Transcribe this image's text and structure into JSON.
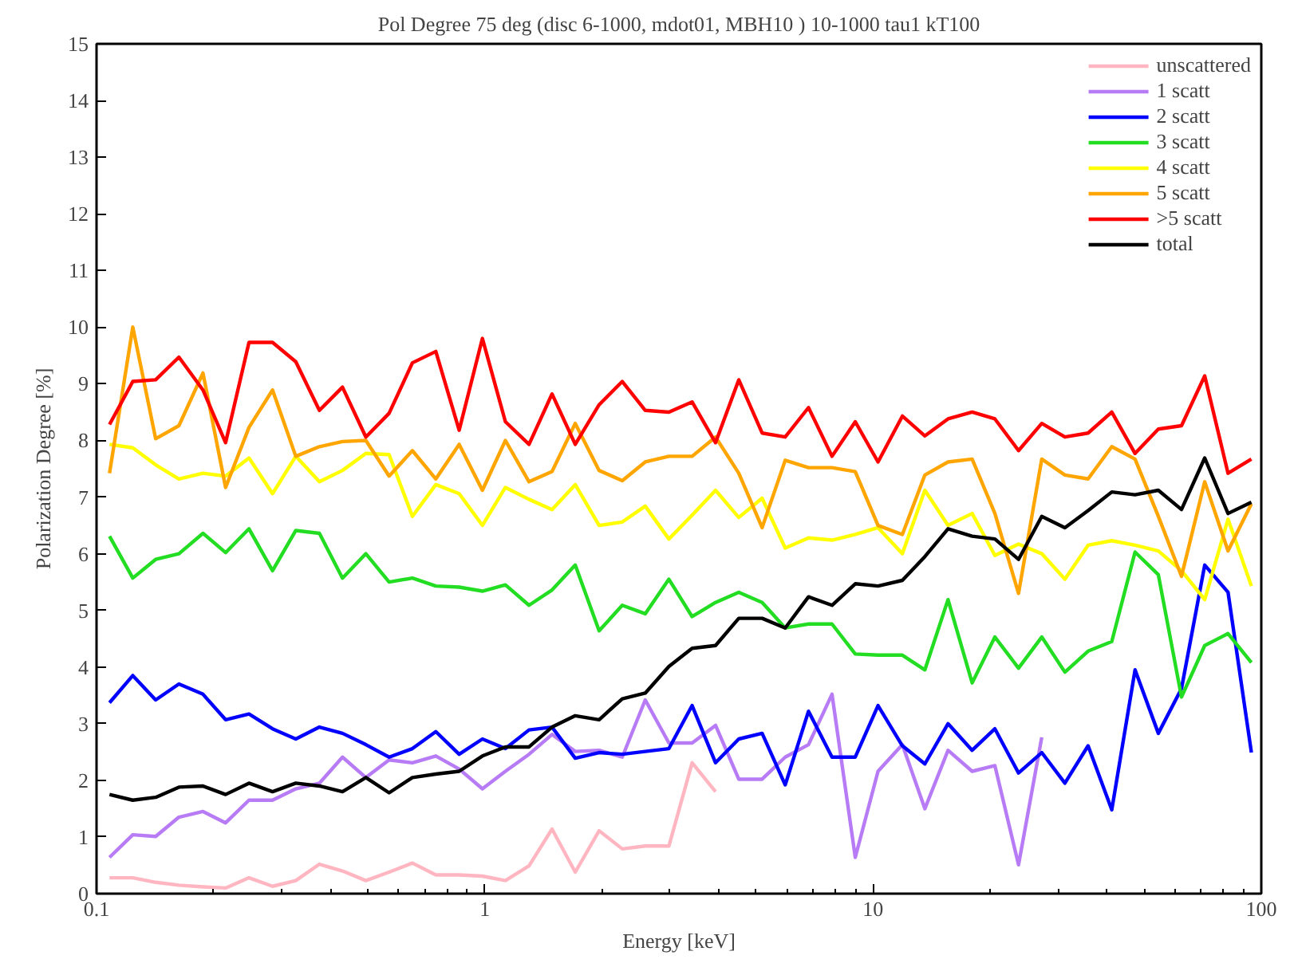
{
  "chart_data": {
    "type": "line",
    "title": "Pol Degree 75 deg (disc 6-1000, mdot01, MBH10 ) 10-1000 tau1 kT100",
    "xlabel": "Energy [keV]",
    "ylabel": "Polarization Degree [%]",
    "log": "x",
    "grid": false,
    "legend": "top right",
    "marker": "none",
    "line_style": "solid",
    "xlim": [
      0.1,
      100
    ],
    "xticks": [
      0.1,
      1,
      10,
      100
    ],
    "ylim": [
      0,
      15
    ],
    "yticks": [
      0,
      1,
      2,
      3,
      4,
      5,
      6,
      7,
      8,
      9,
      10,
      11,
      12,
      13,
      14,
      15
    ],
    "x": [
      0.108,
      0.124,
      0.142,
      0.163,
      0.188,
      0.215,
      0.247,
      0.284,
      0.326,
      0.375,
      0.43,
      0.494,
      0.567,
      0.651,
      0.748,
      0.859,
      0.986,
      1.13,
      1.3,
      1.49,
      1.71,
      1.97,
      2.26,
      2.59,
      2.98,
      3.42,
      3.93,
      4.51,
      5.18,
      5.94,
      6.82,
      7.84,
      9.0,
      10.3,
      11.9,
      13.6,
      15.6,
      18.0,
      20.6,
      23.7,
      27.2,
      31.2,
      35.8,
      41.2,
      47.3,
      54.3,
      62.3,
      71.5,
      82.1,
      94.3
    ],
    "series": [
      {
        "name": "unscattered",
        "color": "#ffb6c1",
        "values": [
          0.28,
          0.28,
          0.2,
          0.15,
          0.12,
          0.1,
          0.28,
          0.13,
          0.23,
          0.52,
          0.4,
          0.23,
          0.38,
          0.54,
          0.33,
          0.33,
          0.31,
          0.23,
          0.49,
          1.14,
          0.38,
          1.11,
          0.79,
          0.84,
          0.84,
          2.31,
          1.8,
          null,
          null,
          null,
          null,
          null,
          null,
          null,
          null,
          null,
          null,
          null,
          null,
          null,
          null,
          null,
          null,
          null,
          null,
          null,
          null,
          null,
          null,
          null
        ]
      },
      {
        "name": "1 scatt",
        "color": "#b77cf5",
        "values": [
          0.64,
          1.04,
          1.01,
          1.35,
          1.45,
          1.25,
          1.65,
          1.65,
          1.85,
          1.95,
          2.41,
          2.05,
          2.36,
          2.31,
          2.43,
          2.2,
          1.85,
          2.16,
          2.46,
          2.81,
          2.51,
          2.53,
          2.41,
          3.42,
          2.66,
          2.66,
          2.97,
          2.02,
          2.02,
          2.41,
          2.63,
          3.52,
          0.64,
          2.16,
          2.63,
          1.5,
          2.53,
          2.16,
          2.26,
          0.51,
          2.76,
          null,
          null,
          null,
          null,
          null,
          null,
          null,
          null,
          null
        ]
      },
      {
        "name": "2 scatt",
        "color": "#0000ff",
        "values": [
          3.37,
          3.85,
          3.42,
          3.7,
          3.52,
          3.07,
          3.17,
          2.91,
          2.73,
          2.94,
          2.83,
          2.63,
          2.41,
          2.56,
          2.86,
          2.46,
          2.73,
          2.56,
          2.89,
          2.94,
          2.39,
          2.49,
          2.46,
          2.51,
          2.56,
          3.32,
          2.31,
          2.73,
          2.83,
          1.92,
          3.22,
          2.41,
          2.41,
          3.32,
          2.61,
          2.29,
          3.0,
          2.53,
          2.91,
          2.13,
          2.49,
          1.95,
          2.61,
          1.48,
          3.95,
          2.83,
          3.62,
          5.8,
          5.32,
          2.49
        ]
      },
      {
        "name": "3 scatt",
        "color": "#22dd22",
        "values": [
          6.31,
          5.57,
          5.9,
          6.0,
          6.36,
          6.02,
          6.44,
          5.7,
          6.41,
          6.36,
          5.57,
          6.0,
          5.5,
          5.57,
          5.43,
          5.41,
          5.34,
          5.45,
          5.09,
          5.36,
          5.8,
          4.64,
          5.09,
          4.94,
          5.55,
          4.89,
          5.14,
          5.32,
          5.14,
          4.69,
          4.76,
          4.76,
          4.23,
          4.21,
          4.21,
          3.95,
          5.19,
          3.72,
          4.53,
          3.98,
          4.53,
          3.91,
          4.28,
          4.45,
          6.03,
          5.63,
          3.47,
          4.38,
          4.59,
          4.08
        ]
      },
      {
        "name": "4 scatt",
        "color": "#ffff00",
        "values": [
          7.93,
          7.87,
          7.57,
          7.32,
          7.42,
          7.37,
          7.69,
          7.06,
          7.72,
          7.27,
          7.47,
          7.77,
          7.75,
          6.66,
          7.22,
          7.06,
          6.5,
          7.17,
          6.96,
          6.78,
          7.22,
          6.5,
          6.56,
          6.84,
          6.26,
          6.68,
          7.12,
          6.64,
          6.98,
          6.1,
          6.28,
          6.24,
          6.34,
          6.46,
          6.0,
          7.12,
          6.5,
          6.71,
          5.97,
          6.17,
          6.0,
          5.55,
          6.15,
          6.23,
          6.15,
          6.05,
          5.7,
          5.19,
          6.61,
          5.43
        ]
      },
      {
        "name": "5 scatt",
        "color": "#ffa500",
        "values": [
          7.42,
          10.0,
          8.03,
          8.26,
          9.19,
          7.17,
          8.23,
          8.89,
          7.72,
          7.89,
          7.98,
          8.0,
          7.37,
          7.82,
          7.32,
          7.93,
          7.12,
          8.0,
          7.27,
          7.45,
          8.3,
          7.47,
          7.29,
          7.62,
          7.72,
          7.72,
          8.06,
          7.42,
          6.46,
          7.65,
          7.52,
          7.52,
          7.45,
          6.5,
          6.34,
          7.39,
          7.62,
          7.67,
          6.71,
          5.3,
          7.67,
          7.39,
          7.32,
          7.89,
          7.67,
          6.66,
          5.6,
          7.27,
          6.05,
          6.88
        ]
      },
      {
        "name": ">5 scatt",
        "color": "#ff0000",
        "values": [
          8.28,
          9.04,
          9.07,
          9.47,
          8.89,
          7.96,
          9.73,
          9.73,
          9.39,
          8.53,
          8.94,
          8.06,
          8.48,
          9.37,
          9.57,
          8.18,
          9.8,
          8.33,
          7.93,
          8.82,
          7.93,
          8.63,
          9.04,
          8.53,
          8.5,
          8.68,
          7.96,
          9.07,
          8.13,
          8.06,
          8.58,
          7.72,
          8.33,
          7.62,
          8.43,
          8.08,
          8.38,
          8.5,
          8.38,
          7.82,
          8.3,
          8.06,
          8.13,
          8.5,
          7.77,
          8.2,
          8.26,
          9.14,
          7.42,
          7.67
        ]
      },
      {
        "name": "total",
        "color": "#000000",
        "values": [
          1.75,
          1.65,
          1.7,
          1.88,
          1.9,
          1.75,
          1.95,
          1.8,
          1.95,
          1.9,
          1.8,
          2.05,
          1.78,
          2.05,
          2.11,
          2.16,
          2.43,
          2.59,
          2.59,
          2.94,
          3.14,
          3.07,
          3.44,
          3.54,
          4.01,
          4.33,
          4.38,
          4.86,
          4.86,
          4.69,
          5.24,
          5.09,
          5.47,
          5.43,
          5.53,
          5.95,
          6.44,
          6.31,
          6.26,
          5.9,
          6.66,
          6.46,
          6.76,
          7.09,
          7.04,
          7.12,
          6.78,
          7.69,
          6.71,
          6.91
        ]
      }
    ]
  }
}
